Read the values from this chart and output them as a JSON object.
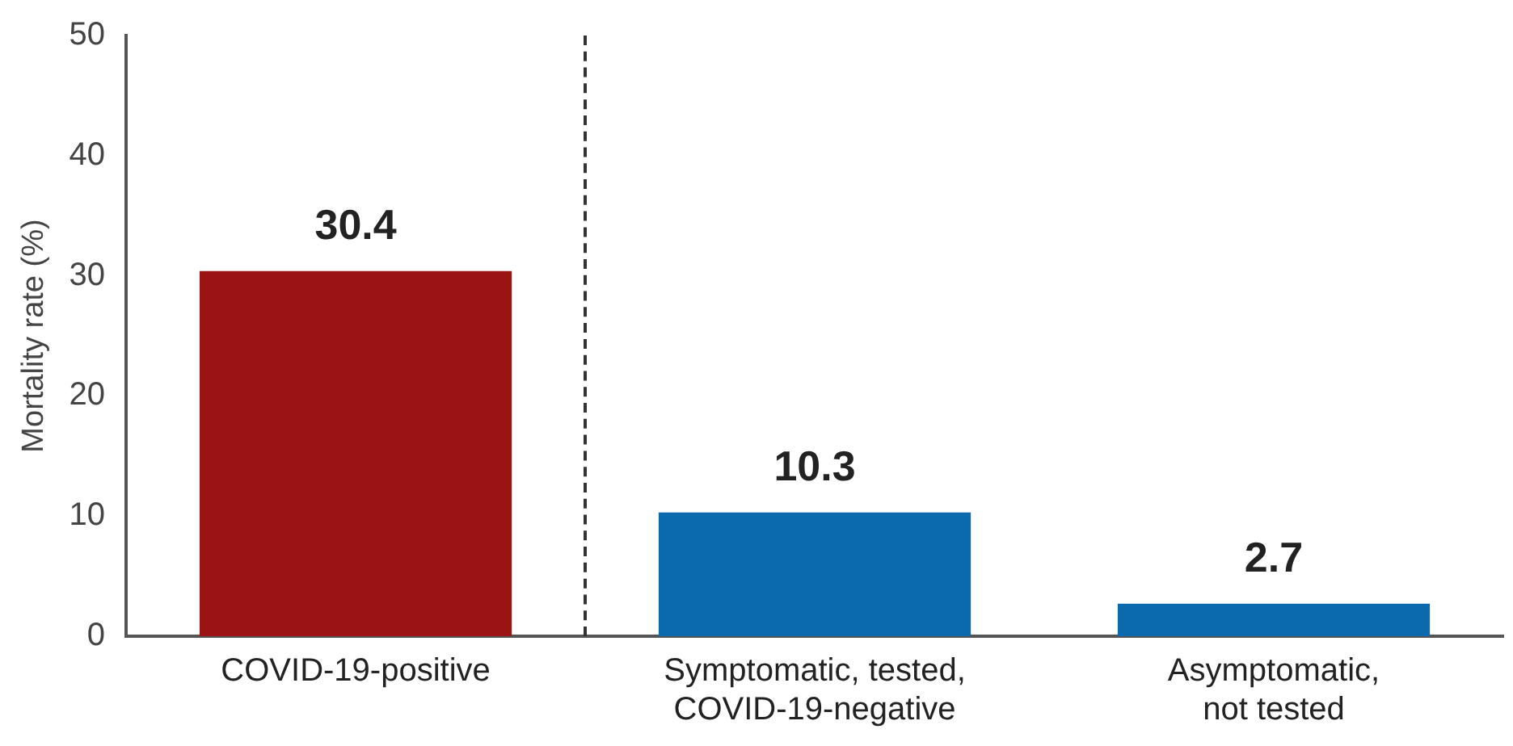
{
  "chart_data": {
    "type": "bar",
    "ylabel": "Mortality rate (%)",
    "categories": [
      "COVID-19-positive",
      "Symptomatic, tested,\nCOVID-19-negative",
      "Asymptomatic,\nnot tested"
    ],
    "values": [
      30.4,
      10.3,
      2.7
    ],
    "colors": [
      "#9b1414",
      "#0a6aad",
      "#0a6aad"
    ],
    "ylim": [
      0,
      50
    ],
    "yticks": [
      0,
      10,
      20,
      30,
      40,
      50
    ],
    "grid": false,
    "legend": false,
    "data_labels": true
  }
}
